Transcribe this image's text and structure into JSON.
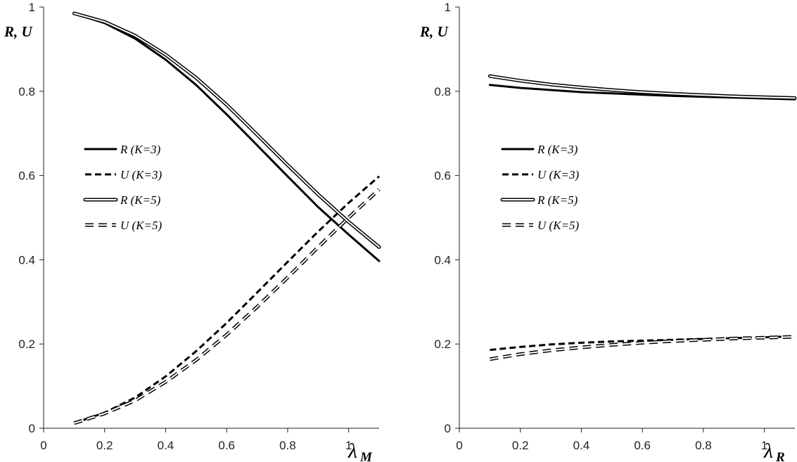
{
  "chart_data": [
    {
      "type": "line",
      "panel": "left",
      "ylabel": "R, U",
      "xlabel_symbol": "λ",
      "xlabel_subscript": "M",
      "xlim": [
        0,
        1.1
      ],
      "ylim": [
        0,
        1
      ],
      "x_ticks": [
        "0",
        "0.2",
        "0.4",
        "0.6",
        "0.8",
        "1"
      ],
      "y_ticks": [
        "0",
        "0.2",
        "0.4",
        "0.6",
        "0.8",
        "1"
      ],
      "grid": false,
      "legend_position": "middle-left",
      "x": [
        0.1,
        0.2,
        0.3,
        0.4,
        0.5,
        0.6,
        0.7,
        0.8,
        0.9,
        1.0,
        1.1
      ],
      "series": [
        {
          "name": "R (K=3)",
          "style": "solid",
          "values": [
            0.985,
            0.962,
            0.925,
            0.875,
            0.815,
            0.745,
            0.672,
            0.598,
            0.525,
            0.46,
            0.397
          ]
        },
        {
          "name": "U (K=3)",
          "style": "dashed",
          "values": [
            0.012,
            0.037,
            0.073,
            0.123,
            0.183,
            0.25,
            0.322,
            0.395,
            0.467,
            0.535,
            0.598
          ]
        },
        {
          "name": "R (K=5)",
          "style": "double",
          "values": [
            0.985,
            0.965,
            0.932,
            0.887,
            0.832,
            0.768,
            0.697,
            0.625,
            0.555,
            0.49,
            0.43
          ]
        },
        {
          "name": "U (K=5)",
          "style": "double-dashed",
          "values": [
            0.012,
            0.035,
            0.066,
            0.11,
            0.162,
            0.222,
            0.288,
            0.358,
            0.43,
            0.5,
            0.567
          ]
        }
      ]
    },
    {
      "type": "line",
      "panel": "right",
      "ylabel": "R, U",
      "xlabel_symbol": "λ",
      "xlabel_subscript": "R",
      "xlim": [
        0,
        1.1
      ],
      "ylim": [
        0,
        1
      ],
      "x_ticks": [
        "0",
        "0.2",
        "0.4",
        "0.6",
        "0.8",
        "1"
      ],
      "y_ticks": [
        "0",
        "0.2",
        "0.4",
        "0.6",
        "0.8",
        "1"
      ],
      "grid": false,
      "legend_position": "middle-left",
      "x": [
        0.1,
        0.2,
        0.3,
        0.4,
        0.5,
        0.6,
        0.7,
        0.8,
        0.9,
        1.0,
        1.1
      ],
      "series": [
        {
          "name": "R (K=3)",
          "style": "solid",
          "values": [
            0.815,
            0.808,
            0.803,
            0.798,
            0.795,
            0.792,
            0.789,
            0.787,
            0.785,
            0.783,
            0.781
          ]
        },
        {
          "name": "U (K=3)",
          "style": "dashed",
          "values": [
            0.186,
            0.193,
            0.199,
            0.203,
            0.206,
            0.208,
            0.21,
            0.212,
            0.214,
            0.216,
            0.218
          ]
        },
        {
          "name": "R (K=5)",
          "style": "double",
          "values": [
            0.836,
            0.825,
            0.816,
            0.809,
            0.803,
            0.798,
            0.794,
            0.791,
            0.788,
            0.786,
            0.784
          ]
        },
        {
          "name": "U (K=5)",
          "style": "double-dashed",
          "values": [
            0.164,
            0.176,
            0.185,
            0.192,
            0.198,
            0.203,
            0.207,
            0.21,
            0.213,
            0.215,
            0.217
          ]
        }
      ]
    }
  ]
}
